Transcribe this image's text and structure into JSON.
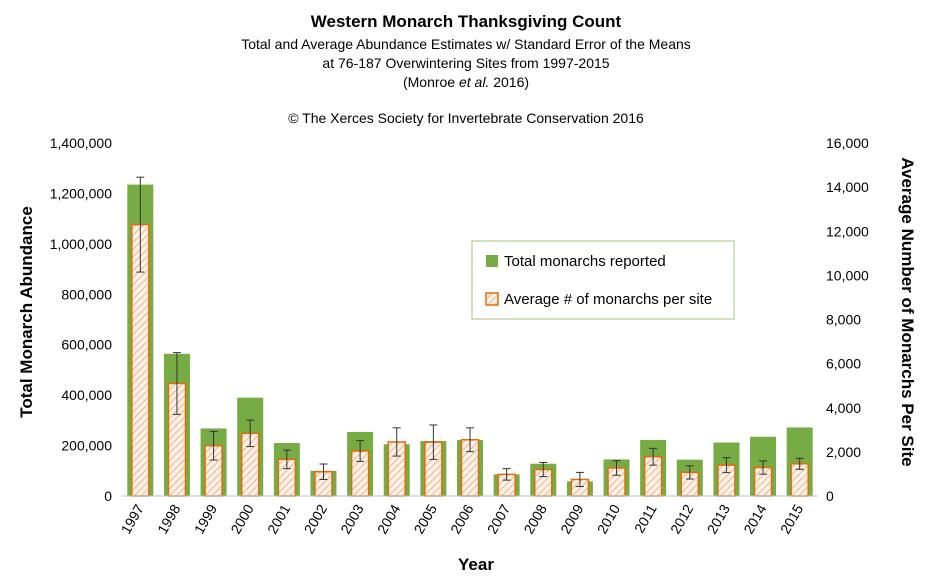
{
  "chart_data": {
    "type": "bar",
    "title": "Western Monarch Thanksgiving Count",
    "subtitle_lines": [
      "Total and Average Abundance Estimates w/ Standard Error of the Means",
      "at 76-187 Overwintering Sites from 1997-2015"
    ],
    "citation": {
      "prefix": "(Monroe ",
      "italic": "et al.",
      "suffix": " 2016)"
    },
    "copyright": "© The Xerces Society for Invertebrate Conservation 2016",
    "xlabel": "Year",
    "ylabel_left": "Total Monarch Abundance",
    "ylabel_right": "Average Number of Monarchs Per Site",
    "ylim_left": [
      0,
      1400000
    ],
    "ylim_right": [
      0,
      16000
    ],
    "yticks_left": [
      "0",
      "200,000",
      "400,000",
      "600,000",
      "800,000",
      "1,000,000",
      "1,200,000",
      "1,400,000"
    ],
    "yticks_right": [
      "0",
      "2,000",
      "4,000",
      "6,000",
      "8,000",
      "10,000",
      "12,000",
      "14,000",
      "16,000"
    ],
    "categories": [
      "1997",
      "1998",
      "1999",
      "2000",
      "2001",
      "2002",
      "2003",
      "2004",
      "2005",
      "2006",
      "2007",
      "2008",
      "2009",
      "2010",
      "2011",
      "2012",
      "2013",
      "2014",
      "2015"
    ],
    "series": [
      {
        "name": "Total monarchs reported",
        "axis": "left",
        "color": "#77ab43",
        "values": [
          1235000,
          564000,
          268000,
          390000,
          210000,
          100000,
          254000,
          205000,
          218000,
          222000,
          86000,
          128000,
          58000,
          145000,
          222000,
          144000,
          212000,
          235000,
          272000
        ]
      },
      {
        "name": "Average # of monarchs per site",
        "axis": "right",
        "color": "#e36c0a",
        "values": [
          12300,
          5100,
          2280,
          2840,
          1660,
          1100,
          2040,
          2450,
          2440,
          2550,
          980,
          1200,
          750,
          1270,
          1780,
          1070,
          1400,
          1290,
          1460
        ],
        "error": [
          2150,
          1400,
          650,
          600,
          420,
          350,
          470,
          640,
          780,
          540,
          260,
          320,
          320,
          330,
          380,
          300,
          340,
          300,
          250
        ]
      }
    ],
    "legend_position": "center-right",
    "grid": false
  }
}
